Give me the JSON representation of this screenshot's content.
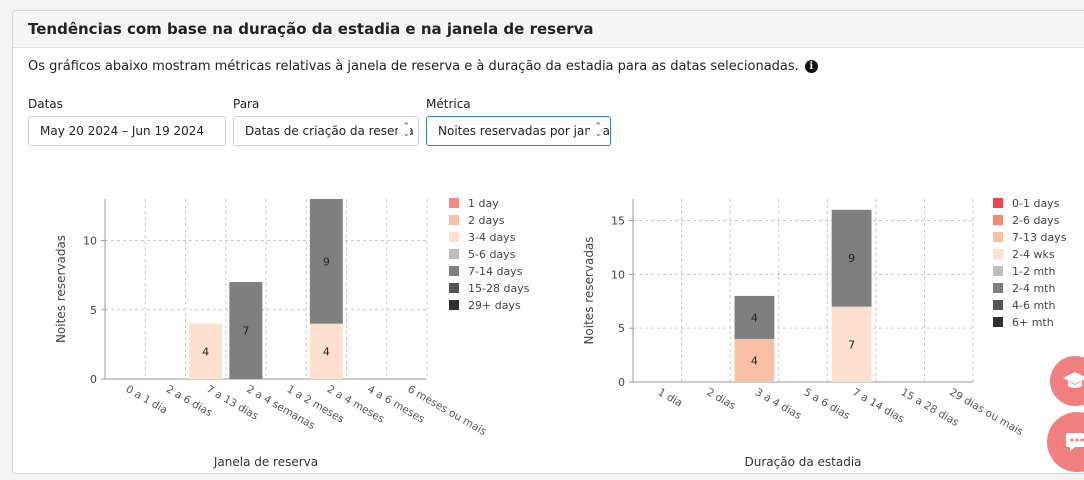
{
  "panel": {
    "title": "Tendências com base na duração da estadia e na janela de reserva",
    "description": "Os gráficos abaixo mostram métricas relativas à janela de reserva e à duração da estadia para as datas selecionadas.",
    "info_icon": "info-icon"
  },
  "filters": {
    "dates": {
      "label": "Datas",
      "value": "May 20 2024 – Jun 19 2024"
    },
    "para": {
      "label": "Para",
      "value": "Datas de criação da reserva"
    },
    "metrica": {
      "label": "Métrica",
      "value": "Noites reservadas por janela"
    }
  },
  "fabs": [
    {
      "icon": "graduation-cap-icon"
    },
    {
      "icon": "chat-bubble-icon"
    }
  ],
  "chart_data": [
    {
      "type": "bar",
      "stacked": true,
      "xlabel": "Janela de reserva",
      "ylabel": "Noites reservadas",
      "ylim": [
        0,
        13
      ],
      "yticks": [
        0,
        5,
        10
      ],
      "grid": true,
      "legend_position": "right",
      "categories": [
        "0 a 1 dia",
        "2 a 6 dias",
        "7 a 13 dias",
        "2 a 4 semanas",
        "1 a 2 meses",
        "2 a 4 meses",
        "4 a 6 meses",
        "6 meses ou mais"
      ],
      "series": [
        {
          "name": "1 day",
          "color": "#f28b82",
          "values": [
            0,
            0,
            0,
            0,
            0,
            0,
            0,
            0
          ]
        },
        {
          "name": "2 days",
          "color": "#f9c0a6",
          "values": [
            0,
            0,
            0,
            0,
            0,
            0,
            0,
            0
          ]
        },
        {
          "name": "3-4 days",
          "color": "#fde0cf",
          "values": [
            0,
            0,
            4,
            0,
            0,
            4,
            0,
            0
          ]
        },
        {
          "name": "5-6 days",
          "color": "#bdbdbd",
          "values": [
            0,
            0,
            0,
            0,
            0,
            0,
            0,
            0
          ]
        },
        {
          "name": "7-14 days",
          "color": "#7f7f7f",
          "values": [
            0,
            0,
            0,
            7,
            0,
            9,
            0,
            0
          ]
        },
        {
          "name": "15-28 days",
          "color": "#555555",
          "values": [
            0,
            0,
            0,
            0,
            0,
            0,
            0,
            0
          ]
        },
        {
          "name": "29+ days",
          "color": "#2f2f2f",
          "values": [
            0,
            0,
            0,
            0,
            0,
            0,
            0,
            0
          ]
        }
      ]
    },
    {
      "type": "bar",
      "stacked": true,
      "xlabel": "Duração da estadia",
      "ylabel": "Noites reservadas",
      "ylim": [
        0,
        17
      ],
      "yticks": [
        0,
        5,
        10,
        15
      ],
      "grid": true,
      "legend_position": "right",
      "categories": [
        "1 dia",
        "2 dias",
        "3 a 4 dias",
        "5 a 6 dias",
        "7 a 14 dias",
        "15 a 28 dias",
        "29 dias ou mais"
      ],
      "series": [
        {
          "name": "0-1 days",
          "color": "#f0444b",
          "values": [
            0,
            0,
            0,
            0,
            0,
            0,
            0
          ]
        },
        {
          "name": "2-6 days",
          "color": "#f28b6e",
          "values": [
            0,
            0,
            0,
            0,
            0,
            0,
            0
          ]
        },
        {
          "name": "7-13 days",
          "color": "#f9c0a6",
          "values": [
            0,
            0,
            4,
            0,
            0,
            0,
            0
          ]
        },
        {
          "name": "2-4 wks",
          "color": "#fde0cf",
          "values": [
            0,
            0,
            0,
            0,
            7,
            0,
            0
          ]
        },
        {
          "name": "1-2 mth",
          "color": "#bdbdbd",
          "values": [
            0,
            0,
            0,
            0,
            0,
            0,
            0
          ]
        },
        {
          "name": "2-4 mth",
          "color": "#7f7f7f",
          "values": [
            0,
            0,
            4,
            0,
            9,
            0,
            0
          ]
        },
        {
          "name": "4-6 mth",
          "color": "#555555",
          "values": [
            0,
            0,
            0,
            0,
            0,
            0,
            0
          ]
        },
        {
          "name": "6+ mth",
          "color": "#2f2f2f",
          "values": [
            0,
            0,
            0,
            0,
            0,
            0,
            0
          ]
        }
      ]
    }
  ]
}
